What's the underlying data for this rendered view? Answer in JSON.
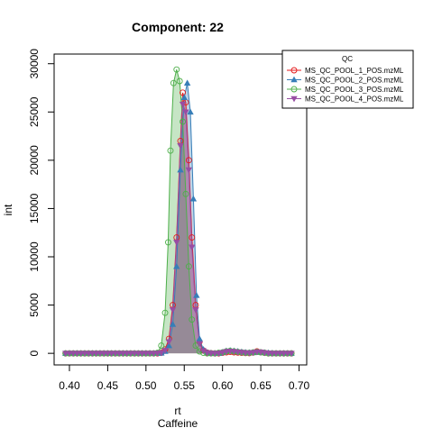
{
  "chart_data": {
    "type": "line",
    "title": "Component: 22",
    "xlabel": "rt",
    "subtitle": "Caffeine",
    "ylabel": "int",
    "xlim": [
      0.38,
      0.71
    ],
    "ylim": [
      -1200,
      31000
    ],
    "x_ticks": [
      "0.40",
      "0.45",
      "0.50",
      "0.55",
      "0.60",
      "0.65",
      "0.70"
    ],
    "y_ticks": [
      "0",
      "5000",
      "10000",
      "15000",
      "20000",
      "25000",
      "30000"
    ],
    "grid": false,
    "legend": {
      "title": "QC",
      "placement": "top-right"
    },
    "series": [
      {
        "name": "MS_QC_POOL_1_POS.mzML",
        "color": "#e41a1c",
        "marker": "circle",
        "points": [
          [
            0.395,
            0
          ],
          [
            0.4,
            0
          ],
          [
            0.405,
            0
          ],
          [
            0.41,
            0
          ],
          [
            0.415,
            0
          ],
          [
            0.42,
            0
          ],
          [
            0.425,
            0
          ],
          [
            0.43,
            0
          ],
          [
            0.435,
            0
          ],
          [
            0.44,
            0
          ],
          [
            0.445,
            0
          ],
          [
            0.45,
            0
          ],
          [
            0.455,
            0
          ],
          [
            0.46,
            0
          ],
          [
            0.465,
            0
          ],
          [
            0.47,
            0
          ],
          [
            0.475,
            0
          ],
          [
            0.48,
            0
          ],
          [
            0.485,
            0
          ],
          [
            0.49,
            0
          ],
          [
            0.495,
            0
          ],
          [
            0.5,
            0
          ],
          [
            0.505,
            0
          ],
          [
            0.51,
            0
          ],
          [
            0.515,
            0
          ],
          [
            0.52,
            50
          ],
          [
            0.525,
            400
          ],
          [
            0.53,
            1500
          ],
          [
            0.535,
            5000
          ],
          [
            0.54,
            12000
          ],
          [
            0.545,
            22000
          ],
          [
            0.548,
            27000
          ],
          [
            0.552,
            26000
          ],
          [
            0.556,
            20000
          ],
          [
            0.56,
            12000
          ],
          [
            0.565,
            5000
          ],
          [
            0.57,
            1200
          ],
          [
            0.575,
            300
          ],
          [
            0.58,
            80
          ],
          [
            0.585,
            20
          ],
          [
            0.59,
            0
          ],
          [
            0.595,
            0
          ],
          [
            0.6,
            50
          ],
          [
            0.605,
            100
          ],
          [
            0.61,
            150
          ],
          [
            0.615,
            100
          ],
          [
            0.62,
            80
          ],
          [
            0.625,
            50
          ],
          [
            0.63,
            30
          ],
          [
            0.635,
            20
          ],
          [
            0.64,
            80
          ],
          [
            0.645,
            200
          ],
          [
            0.65,
            100
          ],
          [
            0.655,
            50
          ],
          [
            0.66,
            0
          ],
          [
            0.665,
            0
          ],
          [
            0.67,
            0
          ],
          [
            0.675,
            0
          ],
          [
            0.68,
            0
          ],
          [
            0.685,
            0
          ],
          [
            0.69,
            0
          ]
        ]
      },
      {
        "name": "MS_QC_POOL_2_POS.mzML",
        "color": "#377eb8",
        "marker": "triangle",
        "points": [
          [
            0.395,
            0
          ],
          [
            0.4,
            0
          ],
          [
            0.405,
            0
          ],
          [
            0.41,
            0
          ],
          [
            0.415,
            0
          ],
          [
            0.42,
            0
          ],
          [
            0.425,
            0
          ],
          [
            0.43,
            0
          ],
          [
            0.435,
            0
          ],
          [
            0.44,
            0
          ],
          [
            0.445,
            0
          ],
          [
            0.45,
            0
          ],
          [
            0.455,
            0
          ],
          [
            0.46,
            0
          ],
          [
            0.465,
            0
          ],
          [
            0.47,
            0
          ],
          [
            0.475,
            0
          ],
          [
            0.48,
            0
          ],
          [
            0.485,
            0
          ],
          [
            0.49,
            0
          ],
          [
            0.495,
            0
          ],
          [
            0.5,
            0
          ],
          [
            0.505,
            0
          ],
          [
            0.51,
            0
          ],
          [
            0.515,
            0
          ],
          [
            0.52,
            30
          ],
          [
            0.525,
            200
          ],
          [
            0.53,
            800
          ],
          [
            0.535,
            3000
          ],
          [
            0.54,
            9000
          ],
          [
            0.545,
            19000
          ],
          [
            0.55,
            26500
          ],
          [
            0.554,
            28000
          ],
          [
            0.558,
            25000
          ],
          [
            0.562,
            16000
          ],
          [
            0.566,
            6000
          ],
          [
            0.57,
            1500
          ],
          [
            0.575,
            400
          ],
          [
            0.58,
            100
          ],
          [
            0.585,
            30
          ],
          [
            0.59,
            0
          ],
          [
            0.595,
            0
          ],
          [
            0.6,
            100
          ],
          [
            0.605,
            250
          ],
          [
            0.61,
            300
          ],
          [
            0.615,
            250
          ],
          [
            0.62,
            200
          ],
          [
            0.625,
            150
          ],
          [
            0.63,
            100
          ],
          [
            0.635,
            80
          ],
          [
            0.64,
            80
          ],
          [
            0.645,
            120
          ],
          [
            0.65,
            100
          ],
          [
            0.655,
            80
          ],
          [
            0.66,
            50
          ],
          [
            0.665,
            20
          ],
          [
            0.67,
            0
          ],
          [
            0.675,
            0
          ],
          [
            0.68,
            0
          ],
          [
            0.685,
            0
          ],
          [
            0.69,
            0
          ]
        ]
      },
      {
        "name": "MS_QC_POOL_3_POS.mzML",
        "color": "#4daf4a",
        "marker": "circle",
        "points": [
          [
            0.395,
            0
          ],
          [
            0.4,
            0
          ],
          [
            0.405,
            0
          ],
          [
            0.41,
            0
          ],
          [
            0.415,
            0
          ],
          [
            0.42,
            0
          ],
          [
            0.425,
            0
          ],
          [
            0.43,
            0
          ],
          [
            0.435,
            0
          ],
          [
            0.44,
            0
          ],
          [
            0.445,
            0
          ],
          [
            0.45,
            0
          ],
          [
            0.455,
            0
          ],
          [
            0.46,
            0
          ],
          [
            0.465,
            0
          ],
          [
            0.47,
            0
          ],
          [
            0.475,
            0
          ],
          [
            0.48,
            0
          ],
          [
            0.485,
            0
          ],
          [
            0.49,
            0
          ],
          [
            0.495,
            0
          ],
          [
            0.5,
            0
          ],
          [
            0.505,
            0
          ],
          [
            0.51,
            0
          ],
          [
            0.515,
            50
          ],
          [
            0.52,
            800
          ],
          [
            0.525,
            4200
          ],
          [
            0.529,
            11500
          ],
          [
            0.532,
            21000
          ],
          [
            0.536,
            28000
          ],
          [
            0.54,
            29400
          ],
          [
            0.544,
            28200
          ],
          [
            0.548,
            24000
          ],
          [
            0.552,
            16500
          ],
          [
            0.556,
            9000
          ],
          [
            0.56,
            3500
          ],
          [
            0.565,
            800
          ],
          [
            0.57,
            200
          ],
          [
            0.575,
            50
          ],
          [
            0.58,
            0
          ],
          [
            0.585,
            0
          ],
          [
            0.59,
            0
          ],
          [
            0.595,
            50
          ],
          [
            0.6,
            100
          ],
          [
            0.605,
            200
          ],
          [
            0.61,
            250
          ],
          [
            0.615,
            200
          ],
          [
            0.62,
            150
          ],
          [
            0.625,
            100
          ],
          [
            0.63,
            50
          ],
          [
            0.635,
            50
          ],
          [
            0.64,
            100
          ],
          [
            0.645,
            150
          ],
          [
            0.65,
            100
          ],
          [
            0.655,
            50
          ],
          [
            0.66,
            0
          ],
          [
            0.665,
            0
          ],
          [
            0.67,
            0
          ],
          [
            0.675,
            0
          ],
          [
            0.68,
            0
          ],
          [
            0.685,
            0
          ],
          [
            0.69,
            0
          ]
        ]
      },
      {
        "name": "MS_QC_POOL_4_POS.mzML",
        "color": "#984ea3",
        "marker": "triangle-down",
        "points": [
          [
            0.395,
            0
          ],
          [
            0.4,
            0
          ],
          [
            0.405,
            0
          ],
          [
            0.41,
            0
          ],
          [
            0.415,
            0
          ],
          [
            0.42,
            0
          ],
          [
            0.425,
            0
          ],
          [
            0.43,
            0
          ],
          [
            0.435,
            0
          ],
          [
            0.44,
            0
          ],
          [
            0.445,
            0
          ],
          [
            0.45,
            0
          ],
          [
            0.455,
            0
          ],
          [
            0.46,
            0
          ],
          [
            0.465,
            0
          ],
          [
            0.47,
            0
          ],
          [
            0.475,
            0
          ],
          [
            0.48,
            0
          ],
          [
            0.485,
            0
          ],
          [
            0.49,
            0
          ],
          [
            0.495,
            0
          ],
          [
            0.5,
            0
          ],
          [
            0.505,
            0
          ],
          [
            0.51,
            0
          ],
          [
            0.515,
            0
          ],
          [
            0.52,
            50
          ],
          [
            0.525,
            300
          ],
          [
            0.53,
            1200
          ],
          [
            0.535,
            4500
          ],
          [
            0.54,
            11500
          ],
          [
            0.545,
            21500
          ],
          [
            0.548,
            25800
          ],
          [
            0.552,
            25000
          ],
          [
            0.556,
            19000
          ],
          [
            0.56,
            11000
          ],
          [
            0.565,
            4500
          ],
          [
            0.57,
            1000
          ],
          [
            0.575,
            250
          ],
          [
            0.58,
            60
          ],
          [
            0.585,
            10
          ],
          [
            0.59,
            0
          ],
          [
            0.595,
            0
          ],
          [
            0.6,
            80
          ],
          [
            0.605,
            180
          ],
          [
            0.61,
            220
          ],
          [
            0.615,
            180
          ],
          [
            0.62,
            140
          ],
          [
            0.625,
            100
          ],
          [
            0.63,
            60
          ],
          [
            0.635,
            40
          ],
          [
            0.64,
            80
          ],
          [
            0.645,
            150
          ],
          [
            0.65,
            120
          ],
          [
            0.655,
            60
          ],
          [
            0.66,
            20
          ],
          [
            0.665,
            0
          ],
          [
            0.67,
            0
          ],
          [
            0.675,
            0
          ],
          [
            0.68,
            0
          ],
          [
            0.685,
            0
          ],
          [
            0.69,
            0
          ]
        ]
      }
    ]
  }
}
